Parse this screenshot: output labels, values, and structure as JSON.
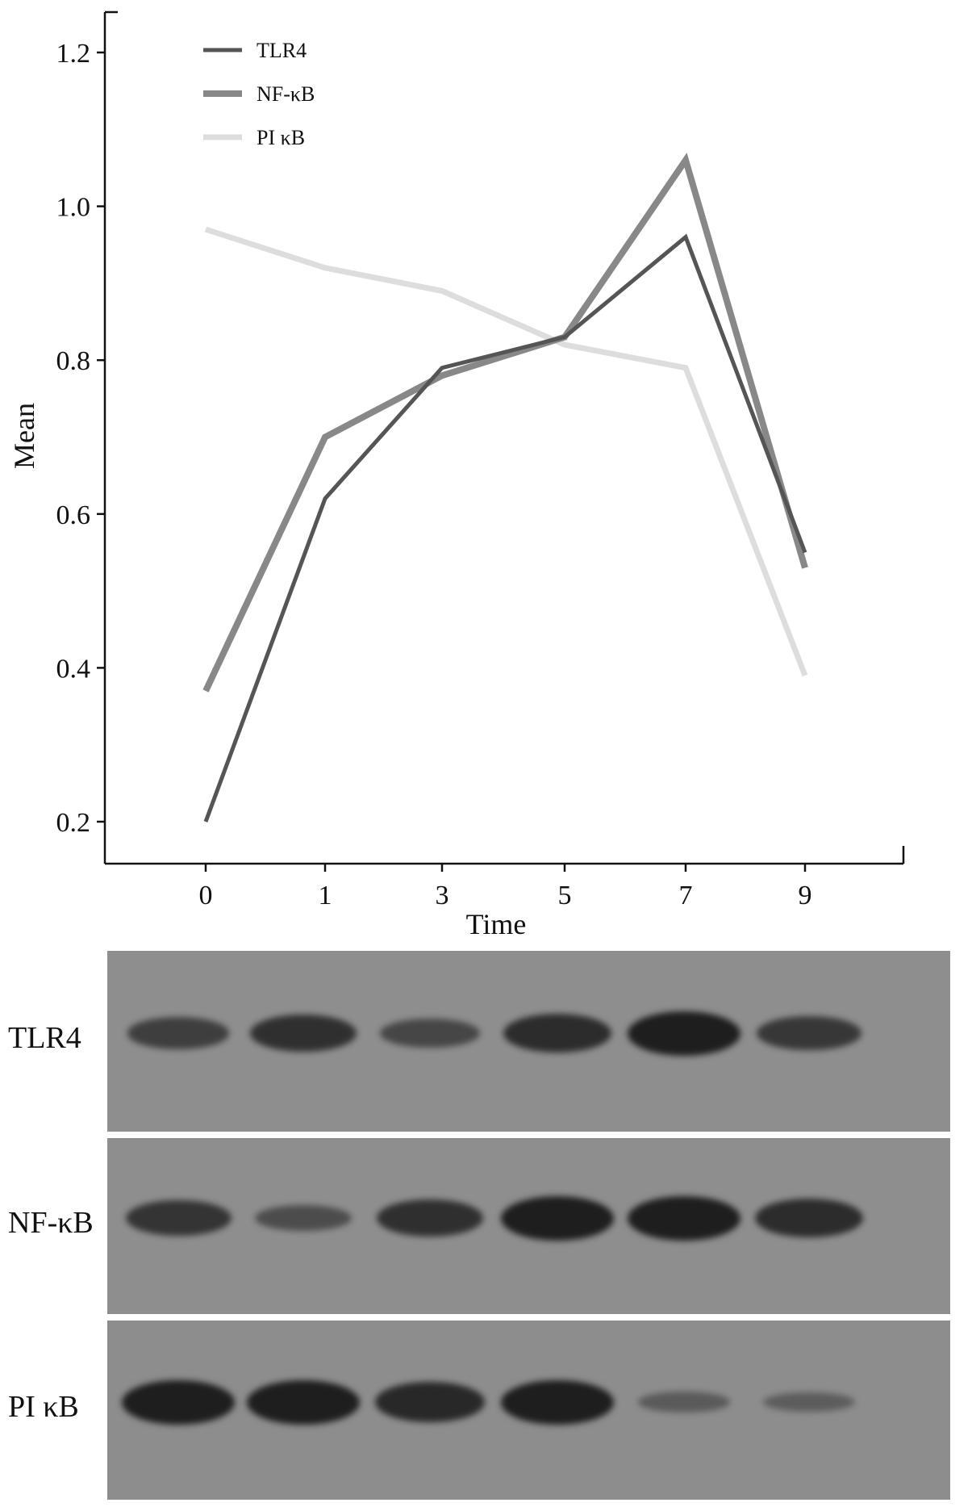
{
  "chart_data": {
    "type": "line",
    "x": [
      "0",
      "1",
      "3",
      "5",
      "7",
      "9"
    ],
    "xlabel": "Time",
    "ylabel": "Mean",
    "ylim": [
      0.2,
      1.2
    ],
    "yticks": [
      "0.2",
      "0.4",
      "0.6",
      "0.8",
      "1.0",
      "1.2"
    ],
    "legend_position": "top-left",
    "grid": false,
    "series": [
      {
        "name": "TLR4",
        "values": [
          0.2,
          0.62,
          0.79,
          0.83,
          0.96,
          0.55
        ],
        "color": "#555555",
        "width": 5
      },
      {
        "name": "NF-κB",
        "values": [
          0.37,
          0.7,
          0.78,
          0.83,
          1.06,
          0.53
        ],
        "color": "#888888",
        "width": 8
      },
      {
        "name": "PI κB",
        "values": [
          0.97,
          0.92,
          0.89,
          0.82,
          0.79,
          0.39
        ],
        "color": "#dddddd",
        "width": 7
      }
    ]
  },
  "blots": [
    {
      "label": "TLR4",
      "bands": [
        0.55,
        0.75,
        0.45,
        0.8,
        1.0,
        0.65
      ]
    },
    {
      "label": "NF-κB",
      "bands": [
        0.7,
        0.35,
        0.75,
        1.0,
        1.0,
        0.8
      ]
    },
    {
      "label": "PI κB",
      "bands": [
        1.0,
        1.0,
        0.85,
        1.0,
        0.15,
        0.12
      ]
    }
  ]
}
